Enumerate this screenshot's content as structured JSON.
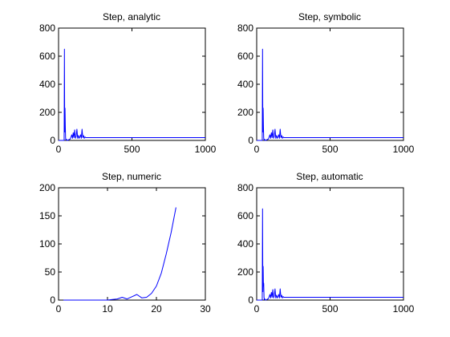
{
  "figure": {
    "background": "#ffffff",
    "series_color": "#0000ff"
  },
  "chart_data": [
    {
      "type": "line",
      "title": "Step, analytic",
      "xlabel": "",
      "ylabel": "",
      "xlim": [
        0,
        1000
      ],
      "ylim": [
        0,
        800
      ],
      "xticks": [
        0,
        500,
        1000
      ],
      "yticks": [
        0,
        200,
        400,
        600,
        800
      ],
      "grid": false,
      "series": [
        {
          "x": [
            0,
            38,
            40,
            42,
            44,
            46,
            48,
            50,
            52,
            54,
            56,
            58,
            60,
            70,
            80,
            90,
            95,
            100,
            105,
            110,
            115,
            120,
            125,
            130,
            135,
            140,
            145,
            150,
            155,
            160,
            165,
            170,
            175,
            180,
            185,
            190,
            200,
            1000
          ],
          "y": [
            0,
            0,
            650,
            60,
            230,
            100,
            15,
            5,
            2,
            8,
            3,
            1,
            0,
            5,
            10,
            40,
            15,
            55,
            20,
            75,
            15,
            30,
            80,
            15,
            35,
            15,
            25,
            40,
            15,
            80,
            20,
            35,
            15,
            25,
            20,
            20,
            20,
            20
          ]
        }
      ]
    },
    {
      "type": "line",
      "title": "Step, symbolic",
      "xlabel": "",
      "ylabel": "",
      "xlim": [
        0,
        1000
      ],
      "ylim": [
        0,
        800
      ],
      "xticks": [
        0,
        500,
        1000
      ],
      "yticks": [
        0,
        200,
        400,
        600,
        800
      ],
      "grid": false,
      "series": [
        {
          "x": [
            0,
            38,
            40,
            42,
            44,
            46,
            48,
            50,
            52,
            54,
            56,
            58,
            60,
            70,
            80,
            90,
            95,
            100,
            105,
            110,
            115,
            120,
            125,
            130,
            135,
            140,
            145,
            150,
            155,
            160,
            165,
            170,
            175,
            180,
            185,
            190,
            200,
            1000
          ],
          "y": [
            0,
            0,
            650,
            60,
            230,
            100,
            15,
            5,
            2,
            8,
            3,
            1,
            0,
            5,
            10,
            40,
            15,
            55,
            20,
            75,
            15,
            30,
            80,
            15,
            35,
            15,
            25,
            40,
            15,
            80,
            20,
            35,
            15,
            25,
            20,
            20,
            20,
            20
          ]
        }
      ]
    },
    {
      "type": "line",
      "title": "Step, numeric",
      "xlabel": "",
      "ylabel": "",
      "xlim": [
        0,
        30
      ],
      "ylim": [
        0,
        200
      ],
      "xticks": [
        0,
        10,
        20,
        30
      ],
      "yticks": [
        0,
        50,
        100,
        150,
        200
      ],
      "grid": false,
      "series": [
        {
          "x": [
            1,
            2,
            3,
            4,
            5,
            6,
            7,
            8,
            9,
            10,
            11,
            12,
            13,
            14,
            15,
            16,
            17,
            18,
            19,
            20,
            21,
            22,
            23,
            24
          ],
          "y": [
            0,
            0,
            0,
            0,
            0,
            0,
            0,
            0,
            0,
            0,
            1,
            2,
            5,
            2,
            6,
            10,
            4,
            5,
            12,
            25,
            48,
            82,
            120,
            165
          ]
        }
      ]
    },
    {
      "type": "line",
      "title": "Step, automatic",
      "xlabel": "",
      "ylabel": "",
      "xlim": [
        0,
        1000
      ],
      "ylim": [
        0,
        800
      ],
      "xticks": [
        0,
        500,
        1000
      ],
      "yticks": [
        0,
        200,
        400,
        600,
        800
      ],
      "grid": false,
      "series": [
        {
          "x": [
            0,
            38,
            40,
            42,
            44,
            46,
            48,
            50,
            52,
            54,
            56,
            58,
            60,
            62,
            70,
            80,
            90,
            95,
            100,
            105,
            110,
            115,
            120,
            125,
            130,
            135,
            140,
            145,
            150,
            155,
            160,
            165,
            170,
            175,
            180,
            185,
            190,
            200,
            1000
          ],
          "y": [
            0,
            0,
            650,
            60,
            240,
            100,
            120,
            20,
            5,
            2,
            8,
            3,
            1,
            0,
            5,
            10,
            40,
            15,
            55,
            20,
            75,
            15,
            30,
            80,
            15,
            35,
            15,
            25,
            40,
            15,
            80,
            20,
            35,
            15,
            25,
            20,
            20,
            20,
            20
          ]
        }
      ]
    }
  ]
}
